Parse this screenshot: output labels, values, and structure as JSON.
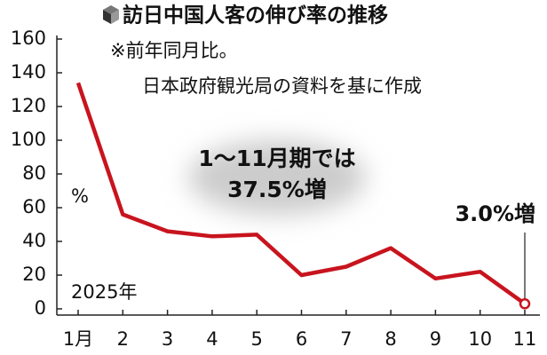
{
  "chart_data": {
    "type": "line",
    "title": "訪日中国人客の伸び率の推移",
    "subtitle": [
      "※前年同月比。",
      "日本政府観光局の資料を基に作成"
    ],
    "y_unit_label": "%",
    "year_label": "2025年",
    "annotation": [
      "1〜11月期では",
      "37.5%増"
    ],
    "categories": [
      "1月",
      "2",
      "3",
      "4",
      "5",
      "6",
      "7",
      "8",
      "9",
      "10",
      "11"
    ],
    "series": [
      {
        "name": null,
        "color": "#c8141e",
        "values": [
          134,
          56,
          46,
          43,
          44,
          20,
          25,
          36,
          18,
          22,
          3.0
        ],
        "value_labels": [
          null,
          null,
          null,
          null,
          null,
          null,
          null,
          null,
          null,
          null,
          "3.0%増"
        ]
      }
    ],
    "ylim": [
      0,
      160
    ],
    "yticks": [
      0,
      20,
      40,
      60,
      80,
      100,
      120,
      140,
      160
    ],
    "grid": false
  }
}
